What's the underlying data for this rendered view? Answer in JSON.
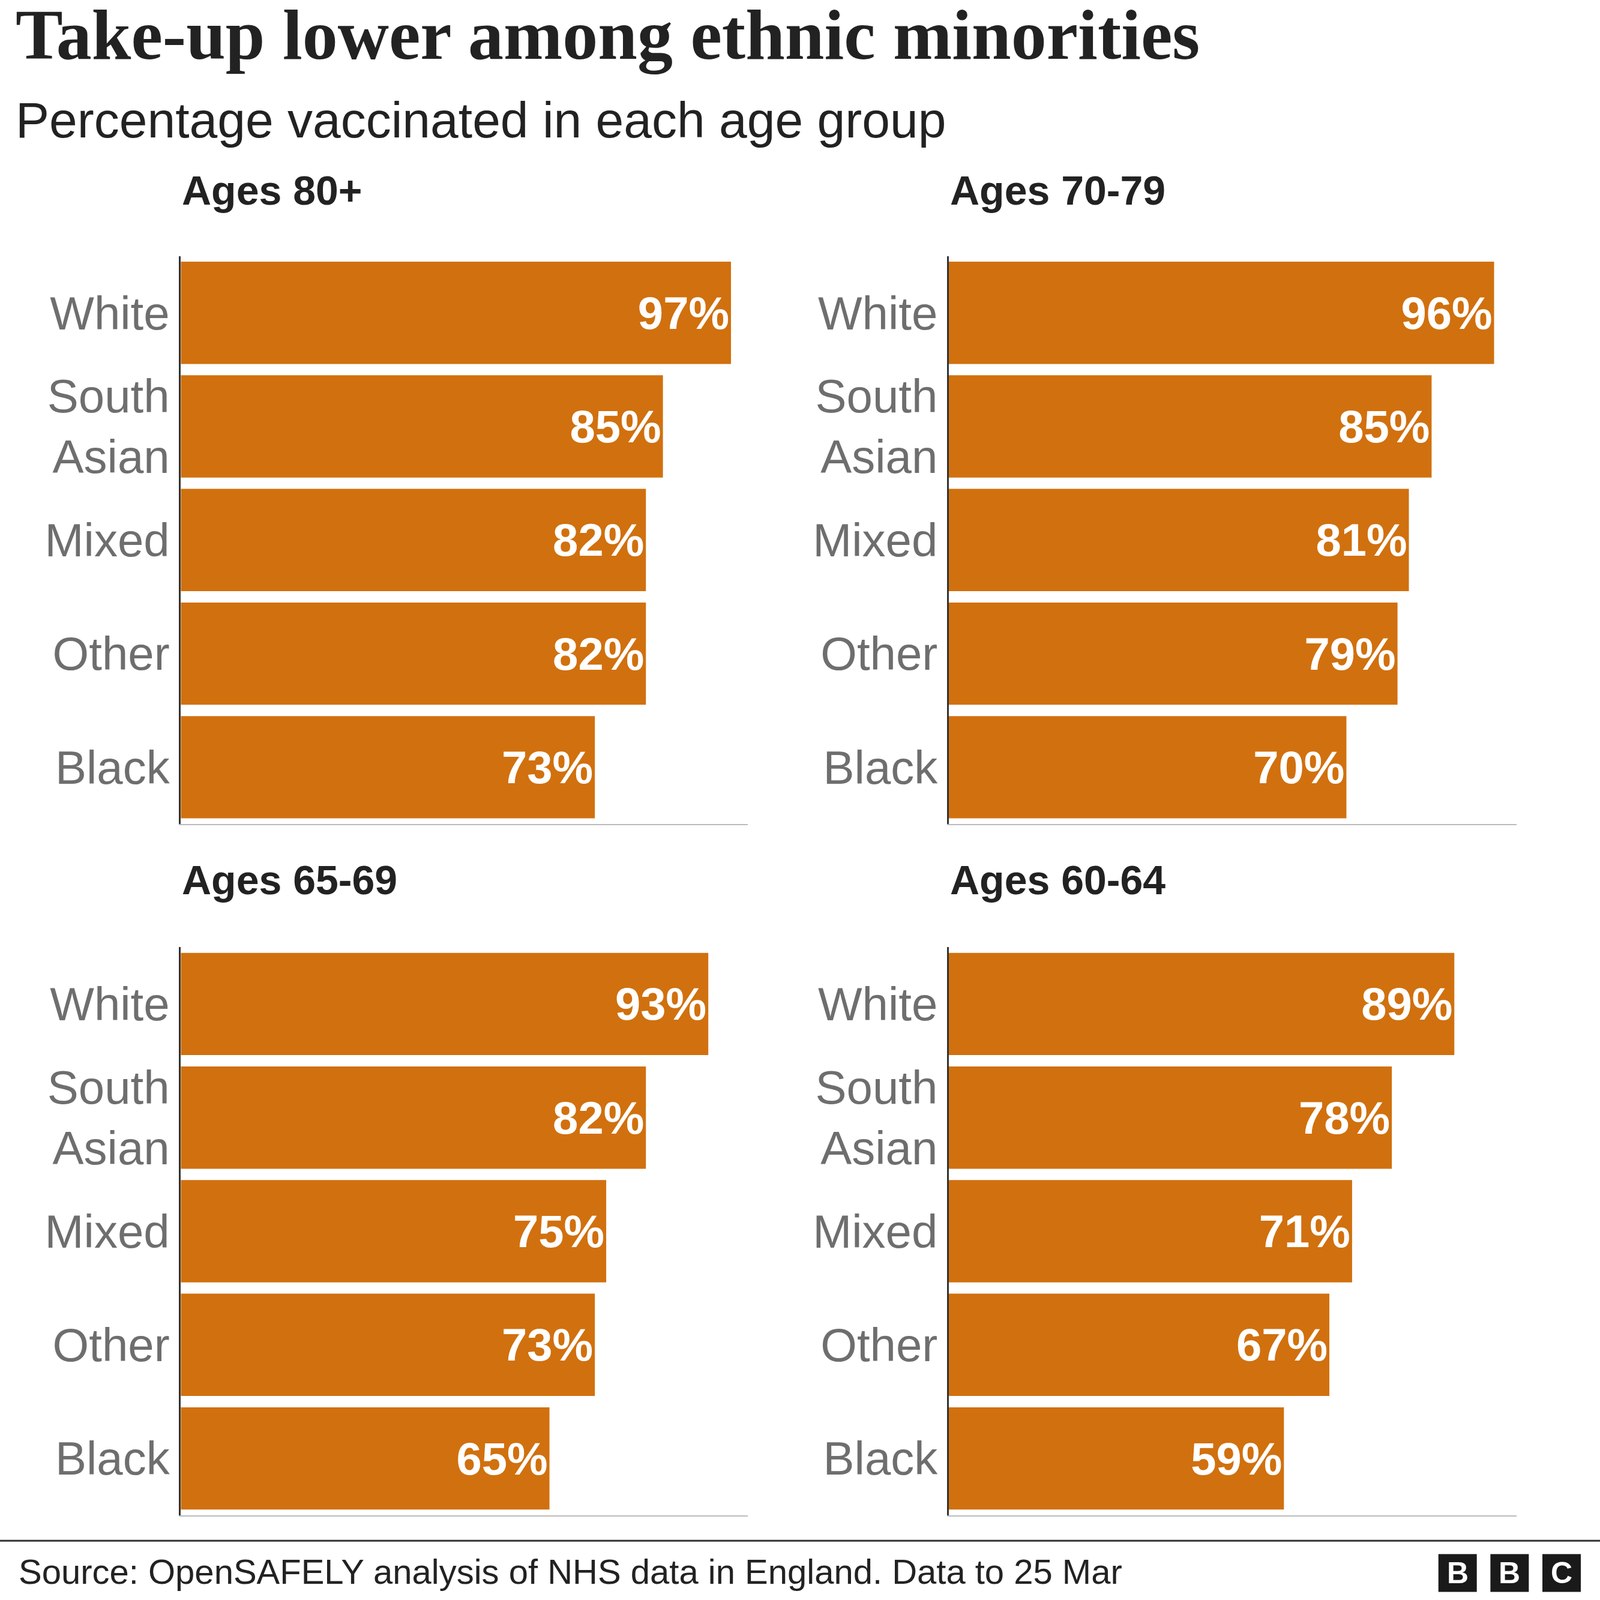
{
  "title": "Take-up lower among ethnic minorities",
  "subtitle": "Percentage vaccinated in each age group",
  "source": "Source: OpenSAFELY analysis of NHS data in England. Data to 25 Mar",
  "logo": "BBC",
  "chart_data": [
    {
      "type": "bar",
      "title": "Ages 80+",
      "orientation": "horizontal",
      "data_labels": true,
      "tick_labels": "y",
      "color": "#d1700e",
      "categories": [
        "White",
        "South Asian",
        "Mixed",
        "Other",
        "Black"
      ],
      "values": [
        97,
        85,
        82,
        82,
        73
      ],
      "value_labels": [
        "97%",
        "85%",
        "82%",
        "82%",
        "73%"
      ],
      "xlim": [
        0,
        100
      ]
    },
    {
      "type": "bar",
      "title": "Ages 70-79",
      "orientation": "horizontal",
      "data_labels": true,
      "tick_labels": "y",
      "color": "#d1700e",
      "categories": [
        "White",
        "South Asian",
        "Mixed",
        "Other",
        "Black"
      ],
      "values": [
        96,
        85,
        81,
        79,
        70
      ],
      "value_labels": [
        "96%",
        "85%",
        "81%",
        "79%",
        "70%"
      ],
      "xlim": [
        0,
        100
      ]
    },
    {
      "type": "bar",
      "title": "Ages 65-69",
      "orientation": "horizontal",
      "data_labels": true,
      "tick_labels": "y",
      "color": "#d1700e",
      "categories": [
        "White",
        "South Asian",
        "Mixed",
        "Other",
        "Black"
      ],
      "values": [
        93,
        82,
        75,
        73,
        65
      ],
      "value_labels": [
        "93%",
        "82%",
        "75%",
        "73%",
        "65%"
      ],
      "xlim": [
        0,
        100
      ]
    },
    {
      "type": "bar",
      "title": "Ages 60-64",
      "orientation": "horizontal",
      "data_labels": true,
      "tick_labels": "y",
      "color": "#d1700e",
      "categories": [
        "White",
        "South Asian",
        "Mixed",
        "Other",
        "Black"
      ],
      "values": [
        89,
        78,
        71,
        67,
        59
      ],
      "value_labels": [
        "89%",
        "78%",
        "71%",
        "67%",
        "59%"
      ],
      "xlim": [
        0,
        100
      ]
    }
  ]
}
